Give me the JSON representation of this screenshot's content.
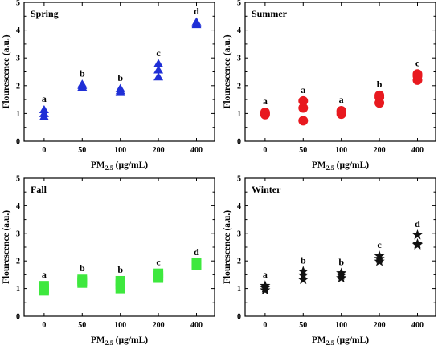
{
  "chart_data": [
    {
      "type": "scatter",
      "title": "Spring",
      "marker": "triangle",
      "color": "#1f2fd6",
      "xlabel": "PM2.5 (µg/mL)",
      "xlabel_main": "PM",
      "xlabel_sub": "2.5",
      "xlabel_rest": " (µg/mL)",
      "ylabel": "Flourescence (a.u.)",
      "categories": [
        "0",
        "50",
        "100",
        "200",
        "400"
      ],
      "ylim": [
        0,
        5
      ],
      "yticks": [
        "0",
        "1",
        "2",
        "3",
        "4",
        "5"
      ],
      "series": [
        {
          "values": [
            [
              0.87,
              0.98,
              1.12
            ],
            [
              1.93,
              1.99,
              2.04
            ],
            [
              1.74,
              1.8,
              1.88
            ],
            [
              2.3,
              2.55,
              2.78
            ],
            [
              4.18,
              4.22,
              4.28
            ]
          ]
        }
      ],
      "letters": [
        "a",
        "b",
        "b",
        "c",
        "d"
      ]
    },
    {
      "type": "scatter",
      "title": "Summer",
      "marker": "circle",
      "color": "#e8191f",
      "xlabel": "PM2.5 (µg/mL)",
      "xlabel_main": "PM",
      "xlabel_sub": "2.5",
      "xlabel_rest": " (µg/mL)",
      "ylabel": "Flourescence (a.u.)",
      "categories": [
        "0",
        "50",
        "100",
        "200",
        "400"
      ],
      "ylim": [
        0,
        5
      ],
      "yticks": [
        "0",
        "1",
        "2",
        "3",
        "4",
        "5"
      ],
      "series": [
        {
          "values": [
            [
              0.96,
              1.0,
              1.04
            ],
            [
              0.74,
              1.2,
              1.45
            ],
            [
              0.98,
              1.05,
              1.1
            ],
            [
              1.38,
              1.58,
              1.65
            ],
            [
              2.2,
              2.35,
              2.42
            ]
          ]
        }
      ],
      "letters": [
        "a",
        "a",
        "a",
        "b",
        "c"
      ]
    },
    {
      "type": "scatter",
      "title": "Fall",
      "marker": "square",
      "color": "#3ee83e",
      "xlabel": "PM2.5 (µg/mL)",
      "xlabel_main": "PM",
      "xlabel_sub": "2.5",
      "xlabel_rest": " (µg/mL)",
      "ylabel": "Flourescence (a.u.)",
      "categories": [
        "0",
        "50",
        "100",
        "200",
        "400"
      ],
      "ylim": [
        0,
        5
      ],
      "yticks": [
        "0",
        "1",
        "2",
        "3",
        "4",
        "5"
      ],
      "series": [
        {
          "values": [
            [
              0.92,
              1.0,
              1.1
            ],
            [
              1.2,
              1.27,
              1.33
            ],
            [
              1.0,
              1.15,
              1.28
            ],
            [
              1.38,
              1.45,
              1.55
            ],
            [
              1.85,
              1.88,
              1.92
            ]
          ]
        }
      ],
      "letters": [
        "a",
        "b",
        "b",
        "c",
        "d"
      ]
    },
    {
      "type": "scatter",
      "title": "Winter",
      "marker": "star",
      "color": "#111111",
      "xlabel": "PM2.5 (µg/mL)",
      "xlabel_main": "PM",
      "xlabel_sub": "2.5",
      "xlabel_rest": " (µg/mL)",
      "ylabel": "Flourescence (a.u.)",
      "categories": [
        "0",
        "50",
        "100",
        "200",
        "400"
      ],
      "ylim": [
        0,
        5
      ],
      "yticks": [
        "0",
        "1",
        "2",
        "3",
        "4",
        "5"
      ],
      "series": [
        {
          "values": [
            [
              0.94,
              1.02,
              1.1
            ],
            [
              1.32,
              1.48,
              1.62
            ],
            [
              1.38,
              1.48,
              1.56
            ],
            [
              1.98,
              2.08,
              2.18
            ],
            [
              2.58,
              2.62,
              2.94
            ]
          ]
        }
      ],
      "letters": [
        "a",
        "b",
        "b",
        "c",
        "d"
      ]
    }
  ]
}
